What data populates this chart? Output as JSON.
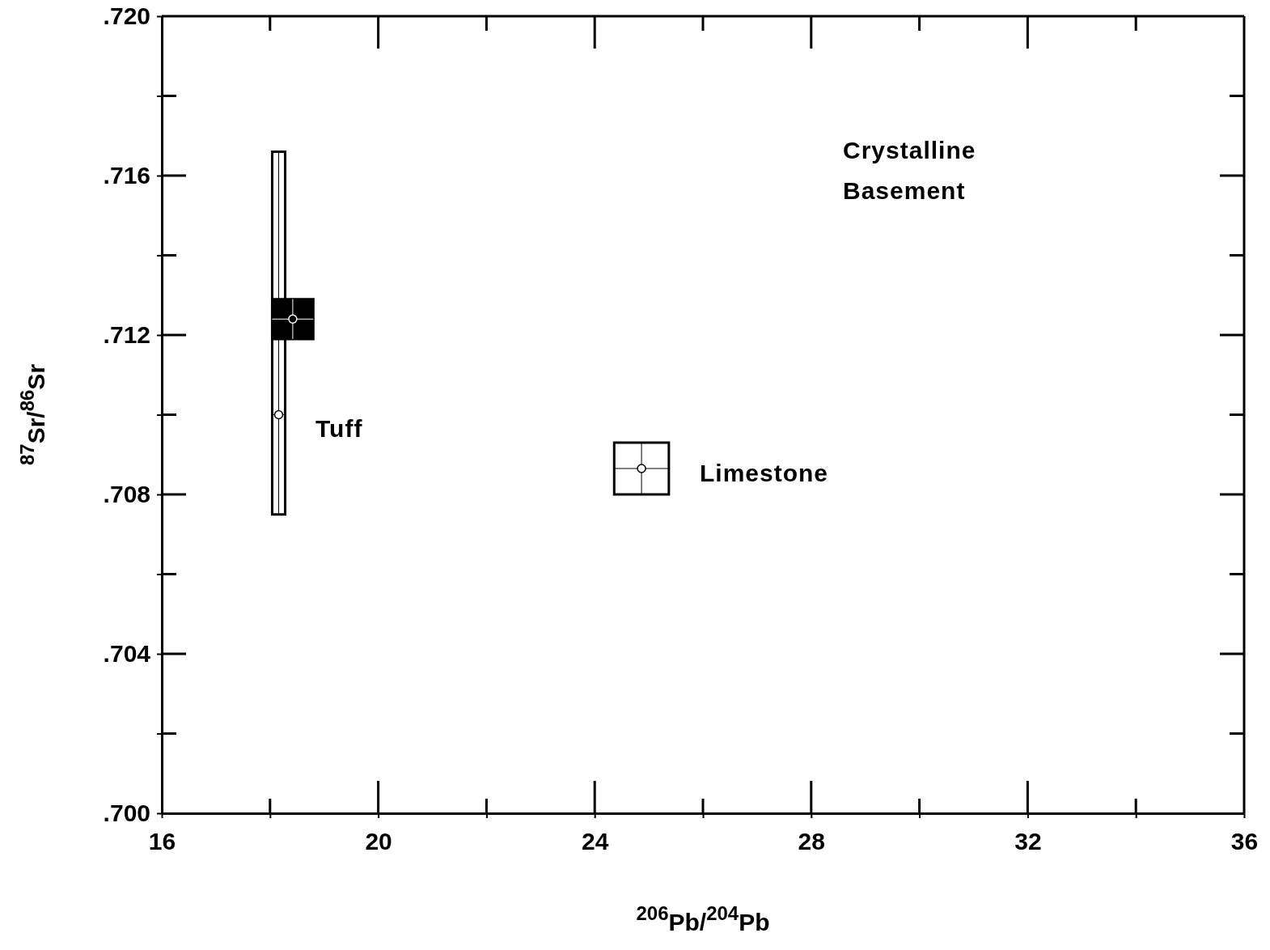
{
  "chart_data": {
    "type": "scatter",
    "xlabel": "$^{206}$Pb/$^{204}$Pb",
    "ylabel": "$^{87}$Sr/$^{86}$Sr",
    "xlim": [
      16,
      36
    ],
    "ylim": [
      0.7,
      0.72
    ],
    "xticks": [
      16,
      {
        "value": 18,
        "label": null
      },
      20,
      {
        "value": 22,
        "label": null
      },
      24,
      {
        "value": 26,
        "label": null
      },
      28,
      {
        "value": 30,
        "label": null
      },
      32,
      {
        "value": 34,
        "label": null
      },
      36
    ],
    "yticks": [
      {
        "value": 0.7,
        "label": ".700"
      },
      {
        "value": 0.702,
        "label": null
      },
      {
        "value": 0.704,
        "label": ".704"
      },
      {
        "value": 0.706,
        "label": null
      },
      {
        "value": 0.708,
        "label": ".708"
      },
      {
        "value": 0.71,
        "label": null
      },
      {
        "value": 0.712,
        "label": ".712"
      },
      {
        "value": 0.714,
        "label": null
      },
      {
        "value": 0.716,
        "label": ".716"
      },
      {
        "value": 0.718,
        "label": null
      },
      {
        "value": 0.72,
        "label": ".720"
      }
    ],
    "series": [
      {
        "color": "#ffffff",
        "x": [
          18.16
        ],
        "values": [
          0.71
        ],
        "xerrors": [
          [
            18.04,
            18.28
          ]
        ],
        "errors": [
          [
            0.7075,
            0.7166
          ]
        ]
      },
      {
        "color": "#000000",
        "x": [
          18.42
        ],
        "values": [
          0.7124
        ],
        "xerrors": [
          [
            18.04,
            18.8
          ]
        ],
        "errors": [
          [
            0.7119,
            0.7129
          ]
        ]
      },
      {
        "color": "#ffffff",
        "x": [
          24.865
        ],
        "values": [
          0.70865
        ],
        "xerrors": [
          [
            24.36,
            25.37
          ]
        ],
        "errors": [
          [
            0.708,
            0.7093
          ]
        ]
      }
    ],
    "annotations": [
      "Tuff",
      "Limestone",
      "Crystalline\nBasement"
    ]
  }
}
